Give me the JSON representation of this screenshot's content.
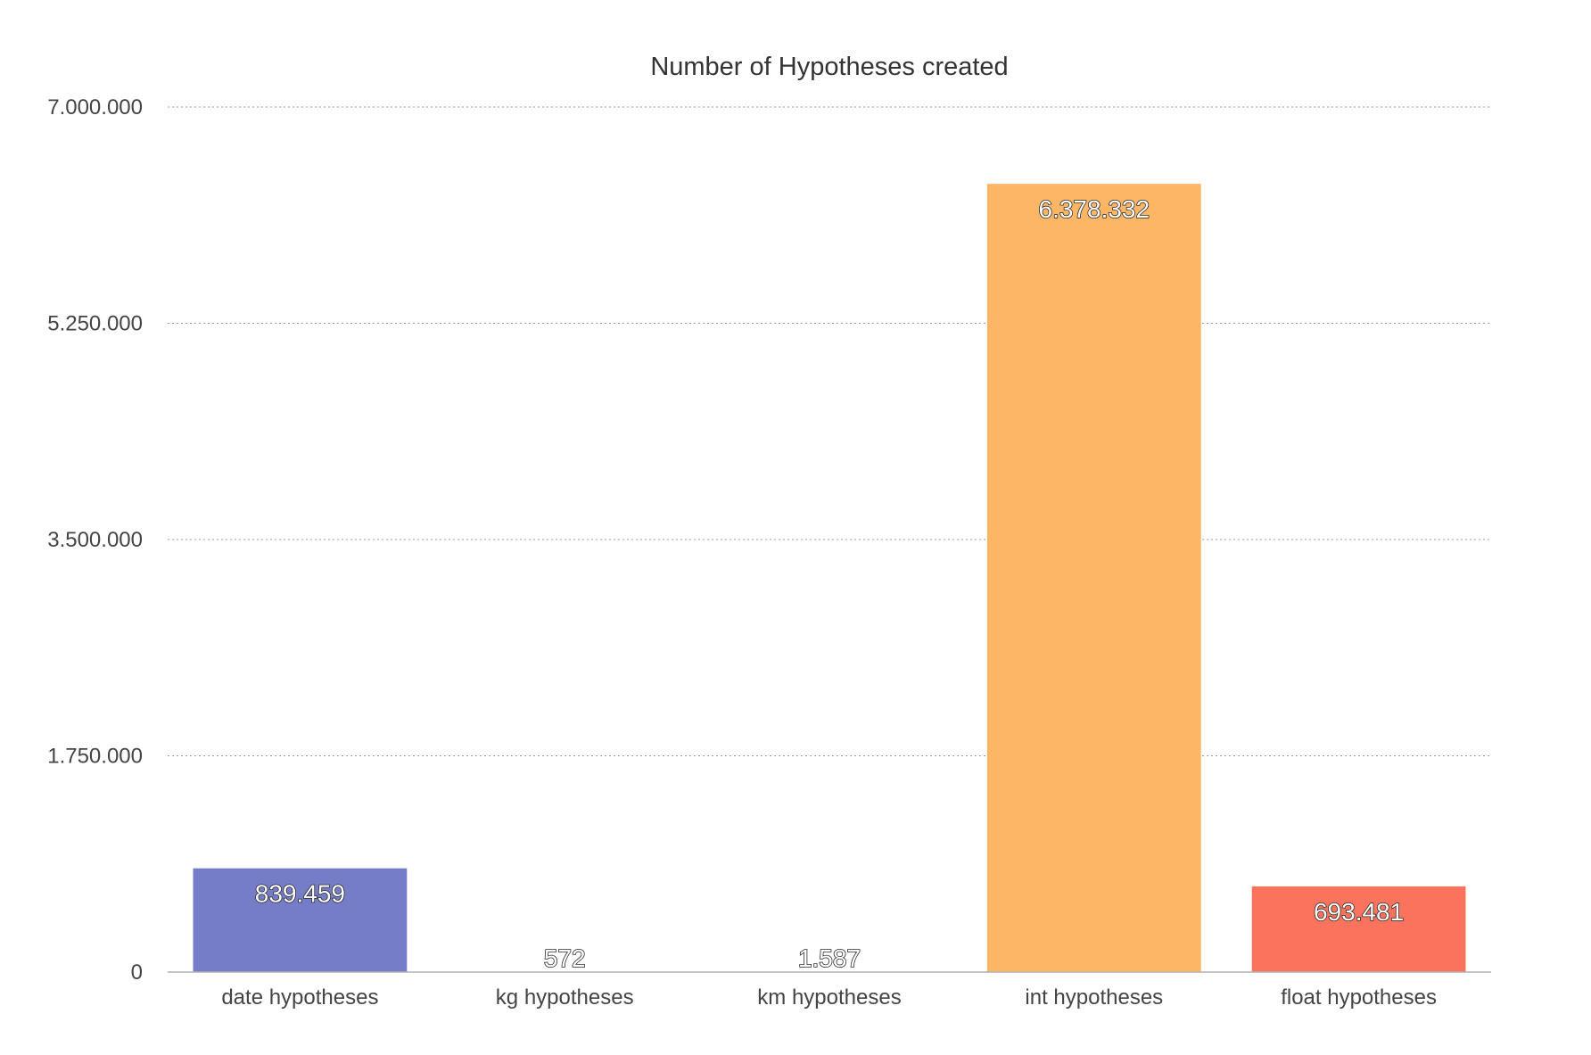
{
  "chart_data": {
    "type": "bar",
    "title": "Number of Hypotheses created",
    "categories": [
      "date hypotheses",
      "kg hypotheses",
      "km hypotheses",
      "int hypotheses",
      "float hypotheses"
    ],
    "values": [
      839459,
      572,
      1587,
      6378332,
      693481
    ],
    "value_labels": [
      "839.459",
      "572",
      "1.587",
      "6.378.332",
      "693.481"
    ],
    "colors": [
      "#757dc8",
      "#757dc8",
      "#757dc8",
      "#fdb666",
      "#fc735d"
    ],
    "ylim": [
      0,
      7000000
    ],
    "yticks": [
      0,
      1750000,
      3500000,
      5250000,
      7000000
    ],
    "ytick_labels": [
      "0",
      "1.750.000",
      "3.500.000",
      "5.250.000",
      "7.000.000"
    ],
    "xlabel": "",
    "ylabel": "",
    "grid": true,
    "legend": "none"
  }
}
